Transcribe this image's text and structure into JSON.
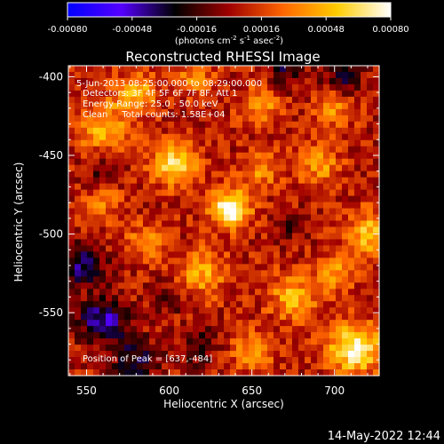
{
  "chart_data": {
    "type": "heatmap",
    "title": "Reconstructed RHESSI Image",
    "xlabel": "Heliocentric X (arcsec)",
    "ylabel": "Heliocentric Y (arcsec)",
    "xlim": [
      539,
      727
    ],
    "ylim": [
      -590,
      -393
    ],
    "xticks": [
      550,
      600,
      650,
      700
    ],
    "yticks": [
      -400,
      -450,
      -500,
      -550
    ],
    "colorbar": {
      "range": [
        -0.0008,
        0.0008
      ],
      "ticks": [
        "-0.00080",
        "-0.00048",
        "-0.00016",
        "0.00016",
        "0.00048",
        "0.00080"
      ],
      "unit_prefix": "(photons cm",
      "unit_sup1": "-2",
      "unit_mid1": " s",
      "unit_sup2": "-1",
      "unit_mid2": " asec",
      "unit_sup3": "-2",
      "unit_suffix": ")",
      "colormap": [
        "#0000ff",
        "#5500ff",
        "#000000",
        "#a00000",
        "#ff6600",
        "#ffcc00",
        "#ffffff"
      ]
    },
    "annotations": [
      "5-Jun-2013 08:25:00.000 to 08:29:00.000",
      "Detectors: 3F 4F 5F 6F 7F 8F, Att 1",
      "Energy Range: 25.0 - 50.0 keV",
      "Clean     Total counts: 1.58E+04"
    ],
    "peak_label": "Position of Peak = [637,-484]",
    "peak": [
      637,
      -484
    ],
    "sources": [
      {
        "x": 637,
        "y": -484,
        "v": 0.0008,
        "s": 8
      },
      {
        "x": 603,
        "y": -456,
        "v": 0.0006,
        "s": 9
      },
      {
        "x": 712,
        "y": -573,
        "v": 0.00068,
        "s": 11
      },
      {
        "x": 722,
        "y": -500,
        "v": 0.00048,
        "s": 10
      },
      {
        "x": 560,
        "y": -432,
        "v": 0.00042,
        "s": 11
      },
      {
        "x": 580,
        "y": -410,
        "v": 0.0004,
        "s": 9
      },
      {
        "x": 655,
        "y": -418,
        "v": 0.00038,
        "s": 8
      },
      {
        "x": 690,
        "y": -455,
        "v": 0.00035,
        "s": 9
      },
      {
        "x": 675,
        "y": -540,
        "v": 0.0004,
        "s": 10
      },
      {
        "x": 620,
        "y": -525,
        "v": 0.0004,
        "s": 10
      },
      {
        "x": 650,
        "y": -575,
        "v": 0.0003,
        "s": 9
      },
      {
        "x": 585,
        "y": -505,
        "v": 0.0003,
        "s": 8
      },
      {
        "x": 700,
        "y": -420,
        "v": 0.0003,
        "s": 8
      },
      {
        "x": 560,
        "y": -480,
        "v": 0.00024,
        "s": 8
      },
      {
        "x": 615,
        "y": -400,
        "v": 0.00028,
        "s": 8
      },
      {
        "x": 655,
        "y": -460,
        "v": 0.0003,
        "s": 8
      },
      {
        "x": 700,
        "y": -525,
        "v": 0.00032,
        "s": 8
      },
      {
        "x": 548,
        "y": -520,
        "v": -0.00045,
        "s": 9
      },
      {
        "x": 560,
        "y": -555,
        "v": -0.00052,
        "s": 10
      },
      {
        "x": 580,
        "y": -580,
        "v": -0.0004,
        "s": 9
      },
      {
        "x": 618,
        "y": -572,
        "v": -0.00028,
        "s": 8
      },
      {
        "x": 705,
        "y": -400,
        "v": -0.00035,
        "s": 8
      },
      {
        "x": 670,
        "y": -396,
        "v": -0.0003,
        "s": 8
      },
      {
        "x": 560,
        "y": -458,
        "v": -0.0002,
        "s": 8
      },
      {
        "x": 600,
        "y": -540,
        "v": -0.00022,
        "s": 7
      },
      {
        "x": 672,
        "y": -495,
        "v": -0.00018,
        "s": 7
      }
    ]
  },
  "timestamp": "14-May-2022 12:44"
}
